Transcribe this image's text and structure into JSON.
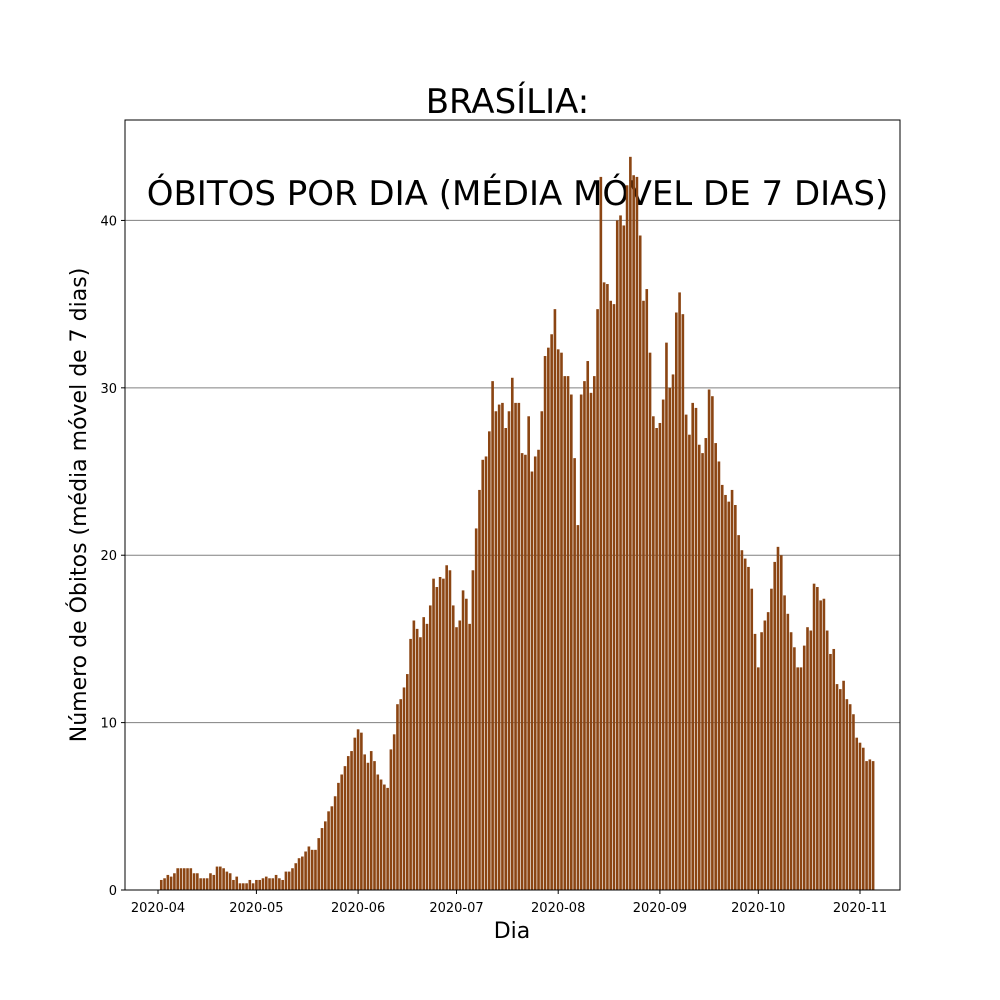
{
  "chart_data": {
    "type": "bar",
    "title_line1": "BRASÍLIA:",
    "title_line2": "ÓBITOS POR DIA (MÉDIA MÓVEL DE 7 DIAS)",
    "xlabel": "Dia",
    "ylabel": "Número de Óbitos (média móvel de 7 dias)",
    "ylim": [
      0,
      46
    ],
    "yticks": [
      0,
      10,
      20,
      30,
      40
    ],
    "xticks": [
      "2020-04",
      "2020-05",
      "2020-06",
      "2020-07",
      "2020-08",
      "2020-09",
      "2020-10",
      "2020-11"
    ],
    "x_start": "2020-04-02",
    "grid": "horizontal",
    "bar_color": "#8B4513",
    "grid_color": "#808080",
    "values": [
      0.6,
      0.7,
      0.9,
      0.8,
      1.0,
      1.3,
      1.3,
      1.3,
      1.3,
      1.3,
      1.0,
      1.0,
      0.7,
      0.7,
      0.7,
      1.0,
      0.9,
      1.4,
      1.4,
      1.3,
      1.1,
      1.0,
      0.6,
      0.8,
      0.4,
      0.4,
      0.4,
      0.6,
      0.4,
      0.6,
      0.6,
      0.7,
      0.8,
      0.7,
      0.7,
      0.9,
      0.7,
      0.6,
      1.1,
      1.1,
      1.3,
      1.6,
      1.9,
      2.0,
      2.3,
      2.6,
      2.4,
      2.4,
      3.1,
      3.7,
      4.1,
      4.7,
      5.0,
      5.6,
      6.4,
      6.9,
      7.4,
      8.0,
      8.3,
      9.1,
      9.6,
      9.4,
      8.1,
      7.6,
      8.3,
      7.7,
      6.9,
      6.6,
      6.3,
      6.1,
      8.4,
      9.3,
      11.1,
      11.4,
      12.1,
      12.9,
      15.0,
      16.1,
      15.6,
      15.1,
      16.3,
      15.9,
      17.0,
      18.6,
      18.1,
      18.7,
      18.6,
      19.4,
      19.1,
      17.0,
      15.7,
      16.1,
      17.9,
      17.4,
      15.9,
      19.1,
      21.6,
      23.9,
      25.7,
      25.9,
      27.4,
      30.4,
      28.6,
      29.0,
      29.1,
      27.6,
      28.6,
      30.6,
      29.1,
      29.1,
      26.1,
      26.0,
      28.3,
      25.0,
      25.9,
      26.3,
      28.6,
      31.9,
      32.4,
      33.2,
      34.7,
      32.3,
      32.1,
      30.7,
      30.7,
      29.6,
      25.8,
      21.8,
      29.6,
      30.4,
      31.6,
      29.7,
      30.7,
      34.7,
      42.6,
      36.3,
      36.2,
      35.2,
      35.0,
      40.0,
      40.3,
      39.7,
      42.1,
      43.8,
      42.7,
      42.6,
      39.1,
      35.2,
      35.9,
      32.1,
      28.3,
      27.6,
      27.9,
      29.3,
      32.7,
      30.0,
      30.8,
      34.5,
      35.7,
      34.4,
      28.4,
      27.2,
      29.1,
      28.8,
      26.6,
      26.1,
      27.0,
      29.9,
      29.5,
      26.7,
      25.6,
      24.2,
      23.6,
      23.2,
      23.9,
      23.0,
      21.2,
      20.3,
      19.8,
      19.3,
      18.0,
      15.3,
      13.3,
      15.4,
      16.1,
      16.6,
      18.0,
      19.6,
      20.5,
      20.0,
      17.6,
      16.5,
      15.4,
      14.5,
      13.3,
      13.3,
      14.6,
      15.7,
      15.5,
      18.3,
      18.1,
      17.3,
      17.4,
      15.5,
      14.1,
      14.4,
      12.3,
      12.0,
      12.5,
      11.4,
      11.1,
      10.5,
      9.1,
      8.8,
      8.5,
      7.7,
      7.8,
      7.7
    ]
  }
}
